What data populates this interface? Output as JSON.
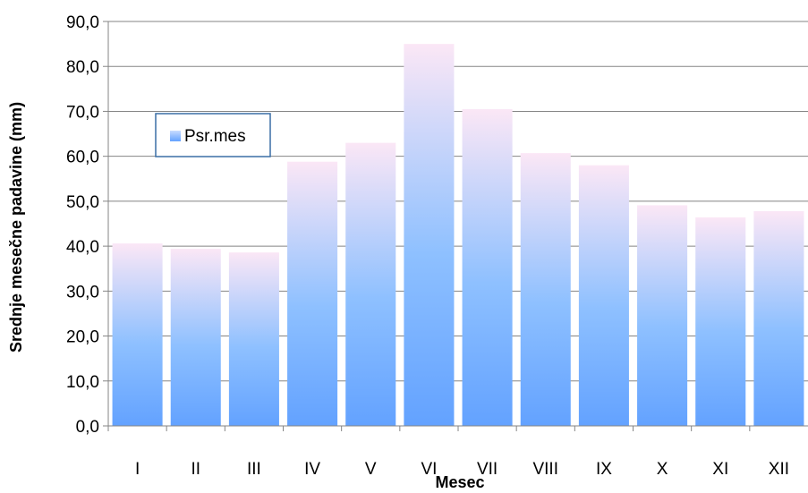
{
  "chart_data": {
    "type": "bar",
    "categories": [
      "I",
      "II",
      "III",
      "IV",
      "V",
      "VI",
      "VII",
      "VIII",
      "IX",
      "X",
      "XI",
      "XII"
    ],
    "series": [
      {
        "name": "Psr.mes",
        "values": [
          40.6,
          39.4,
          38.6,
          58.8,
          63.0,
          85.0,
          70.5,
          60.7,
          58.0,
          49.1,
          46.4,
          47.8
        ]
      }
    ],
    "xlabel": "Mesec",
    "ylabel": "Srednje mesečne padavine (mm)",
    "ylim": [
      0,
      90
    ],
    "yticks": [
      "0,0",
      "10,0",
      "20,0",
      "30,0",
      "40,0",
      "50,0",
      "60,0",
      "70,0",
      "80,0",
      "90,0"
    ],
    "grid": true,
    "legend": "top-left",
    "colors": {
      "bar_top": "#fbe7f6",
      "bar_bottom": "#63a2ff",
      "grid": "#858585",
      "legend_border": "#3a6ea5"
    }
  }
}
